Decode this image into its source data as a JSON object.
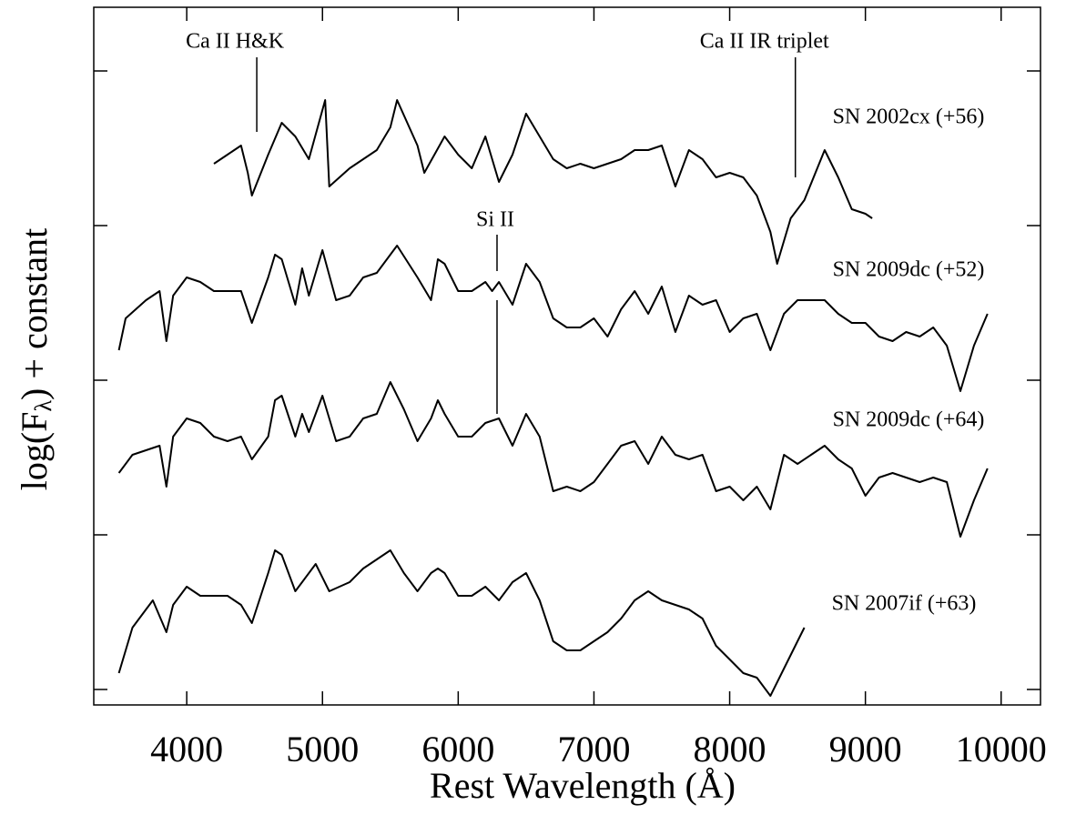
{
  "chart_data": {
    "type": "line",
    "x_label": "Rest Wavelength (Å)",
    "y_label": [
      "log(F",
      "λ",
      ") + constant"
    ],
    "xlim": [
      3315,
      10290
    ],
    "xticks": [
      4000,
      5000,
      6000,
      7000,
      8000,
      9000,
      10000
    ],
    "ylim": [
      0,
      767
    ],
    "yticks": [
      17,
      187,
      357,
      527,
      697
    ],
    "series": [
      {
        "name": "SN 2002cx (+56)",
        "color": "#000000",
        "x": [
          4200,
          4300,
          4400,
          4450,
          4480,
          4600,
          4700,
          4800,
          4900,
          5020,
          5050,
          5200,
          5400,
          5500,
          5550,
          5700,
          5750,
          5900,
          6000,
          6100,
          6200,
          6300,
          6400,
          6500,
          6600,
          6700,
          6800,
          6900,
          7000,
          7200,
          7300,
          7400,
          7500,
          7600,
          7700,
          7800,
          7900,
          8000,
          8100,
          8200,
          8300,
          8350,
          8450,
          8550,
          8700,
          8800,
          8900,
          9000,
          9050
        ],
        "values": [
          595,
          605,
          615,
          585,
          560,
          605,
          640,
          625,
          600,
          665,
          570,
          590,
          610,
          635,
          665,
          615,
          585,
          625,
          605,
          590,
          625,
          575,
          605,
          650,
          625,
          600,
          590,
          595,
          590,
          600,
          610,
          610,
          615,
          570,
          610,
          600,
          580,
          585,
          580,
          560,
          520,
          485,
          535,
          555,
          610,
          580,
          545,
          540,
          535
        ]
      },
      {
        "name": "SN 2009dc (+52)",
        "color": "#000000",
        "x": [
          3500,
          3550,
          3700,
          3800,
          3850,
          3900,
          4000,
          4100,
          4200,
          4300,
          4400,
          4480,
          4600,
          4650,
          4700,
          4800,
          4850,
          4900,
          5000,
          5100,
          5200,
          5300,
          5400,
          5550,
          5700,
          5800,
          5850,
          5900,
          6000,
          6100,
          6200,
          6250,
          6300,
          6400,
          6500,
          6600,
          6700,
          6800,
          6900,
          7000,
          7100,
          7200,
          7300,
          7400,
          7500,
          7600,
          7700,
          7800,
          7900,
          8000,
          8100,
          8200,
          8300,
          8400,
          8500,
          8600,
          8700,
          8800,
          8900,
          9000,
          9100,
          9200,
          9300,
          9400,
          9500,
          9600,
          9700,
          9800,
          9900
        ],
        "values": [
          390,
          425,
          445,
          455,
          400,
          450,
          470,
          465,
          455,
          455,
          455,
          420,
          470,
          495,
          490,
          440,
          480,
          450,
          500,
          445,
          450,
          470,
          475,
          505,
          470,
          445,
          490,
          485,
          455,
          455,
          465,
          455,
          465,
          440,
          485,
          465,
          425,
          415,
          415,
          425,
          405,
          435,
          455,
          430,
          460,
          410,
          450,
          440,
          445,
          410,
          425,
          430,
          390,
          430,
          445,
          445,
          445,
          430,
          420,
          420,
          405,
          400,
          410,
          405,
          415,
          395,
          345,
          395,
          430
        ]
      },
      {
        "name": "SN 2009dc (+64)",
        "color": "#000000",
        "x": [
          3500,
          3600,
          3700,
          3800,
          3850,
          3900,
          4000,
          4100,
          4200,
          4300,
          4400,
          4480,
          4600,
          4650,
          4700,
          4800,
          4850,
          4900,
          5000,
          5100,
          5200,
          5300,
          5400,
          5500,
          5600,
          5700,
          5800,
          5850,
          5900,
          6000,
          6100,
          6200,
          6300,
          6400,
          6500,
          6600,
          6700,
          6800,
          6900,
          7000,
          7100,
          7200,
          7300,
          7400,
          7500,
          7600,
          7700,
          7800,
          7900,
          8000,
          8100,
          8200,
          8300,
          8400,
          8500,
          8600,
          8700,
          8800,
          8900,
          9000,
          9100,
          9200,
          9300,
          9400,
          9500,
          9600,
          9700,
          9800,
          9900
        ],
        "values": [
          255,
          275,
          280,
          285,
          240,
          295,
          315,
          310,
          295,
          290,
          295,
          270,
          295,
          335,
          340,
          295,
          320,
          300,
          340,
          290,
          295,
          315,
          320,
          355,
          325,
          290,
          315,
          335,
          320,
          295,
          295,
          310,
          315,
          285,
          320,
          295,
          235,
          240,
          235,
          245,
          265,
          285,
          290,
          265,
          295,
          275,
          270,
          275,
          235,
          240,
          225,
          240,
          215,
          275,
          265,
          275,
          285,
          270,
          260,
          230,
          250,
          255,
          250,
          245,
          250,
          245,
          185,
          225,
          260
        ]
      },
      {
        "name": "SN 2007if (+63)",
        "color": "#000000",
        "x": [
          3500,
          3600,
          3700,
          3750,
          3850,
          3900,
          4000,
          4100,
          4200,
          4300,
          4400,
          4480,
          4600,
          4650,
          4700,
          4800,
          4850,
          4950,
          5050,
          5200,
          5300,
          5400,
          5500,
          5600,
          5700,
          5800,
          5850,
          5900,
          6000,
          6100,
          6200,
          6300,
          6400,
          6500,
          6600,
          6700,
          6800,
          6900,
          7000,
          7100,
          7200,
          7300,
          7400,
          7500,
          7600,
          7700,
          7800,
          7900,
          8000,
          8100,
          8200,
          8300,
          8400,
          8500,
          8550
        ],
        "values": [
          35,
          85,
          105,
          115,
          80,
          110,
          130,
          120,
          120,
          120,
          110,
          90,
          145,
          170,
          165,
          125,
          135,
          155,
          125,
          135,
          150,
          160,
          170,
          145,
          125,
          145,
          150,
          145,
          120,
          120,
          130,
          115,
          135,
          145,
          115,
          70,
          60,
          60,
          70,
          80,
          95,
          115,
          125,
          115,
          110,
          105,
          95,
          65,
          50,
          35,
          30,
          10,
          40,
          70,
          85
        ]
      }
    ],
    "annotations": [
      {
        "text": "Ca II H&K",
        "x": 4516
      },
      {
        "text": "Ca II IR triplet",
        "x": 8484
      },
      {
        "text": "Si II",
        "x": 6286
      }
    ]
  }
}
